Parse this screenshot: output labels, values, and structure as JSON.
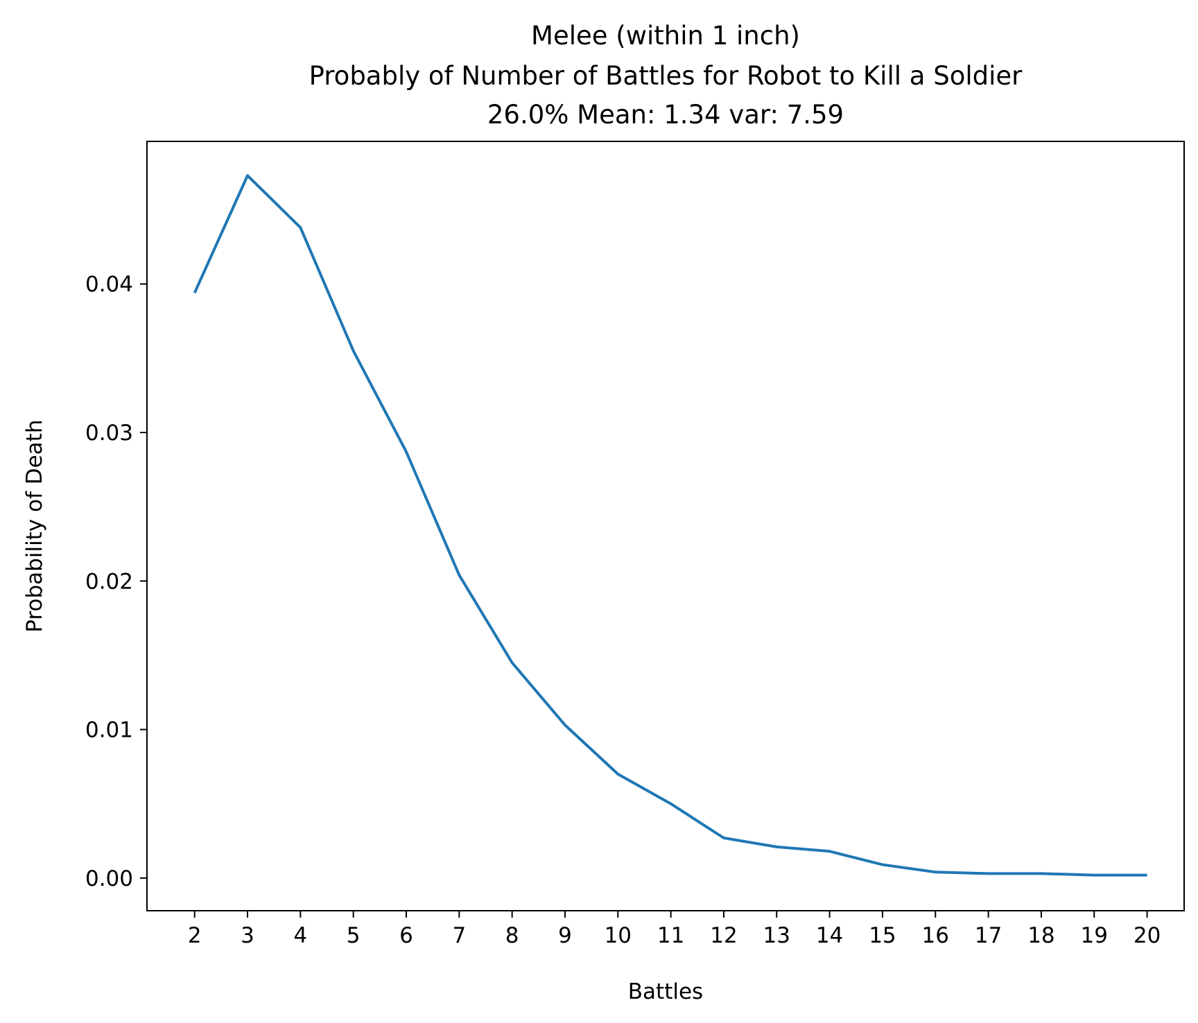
{
  "chart_data": {
    "type": "line",
    "title": "Melee (within 1 inch)",
    "subtitle": "Probably of Number of Battles for Robot to Kill a Soldier",
    "stats_line": "26.0% Mean: 1.34 var: 7.59",
    "xlabel": "Battles",
    "ylabel": "Probability of Death",
    "xlim": [
      1.1,
      20.7
    ],
    "ylim": [
      -0.0022,
      0.0496
    ],
    "x_ticks": [
      2,
      3,
      4,
      5,
      6,
      7,
      8,
      9,
      10,
      11,
      12,
      13,
      14,
      15,
      16,
      17,
      18,
      19,
      20
    ],
    "x_tick_labels": [
      "2",
      "3",
      "4",
      "5",
      "6",
      "7",
      "8",
      "9",
      "10",
      "11",
      "12",
      "13",
      "14",
      "15",
      "16",
      "17",
      "18",
      "19",
      "20"
    ],
    "y_ticks": [
      0.0,
      0.01,
      0.02,
      0.03,
      0.04
    ],
    "y_tick_labels": [
      "0.00",
      "0.01",
      "0.02",
      "0.03",
      "0.04"
    ],
    "grid": false,
    "legend": "none",
    "line_color": "#1f77b4",
    "series": [
      {
        "x": [
          2,
          3,
          4,
          5,
          6,
          7,
          8,
          9,
          10,
          11,
          12,
          13,
          14,
          15,
          16,
          17,
          18,
          19,
          20
        ],
        "values": [
          0.0394,
          0.0473,
          0.0438,
          0.0355,
          0.0287,
          0.0204,
          0.0145,
          0.0103,
          0.007,
          0.005,
          0.0027,
          0.0021,
          0.0018,
          0.0009,
          0.0004,
          0.0003,
          0.0003,
          0.0002,
          0.0002
        ]
      }
    ]
  }
}
